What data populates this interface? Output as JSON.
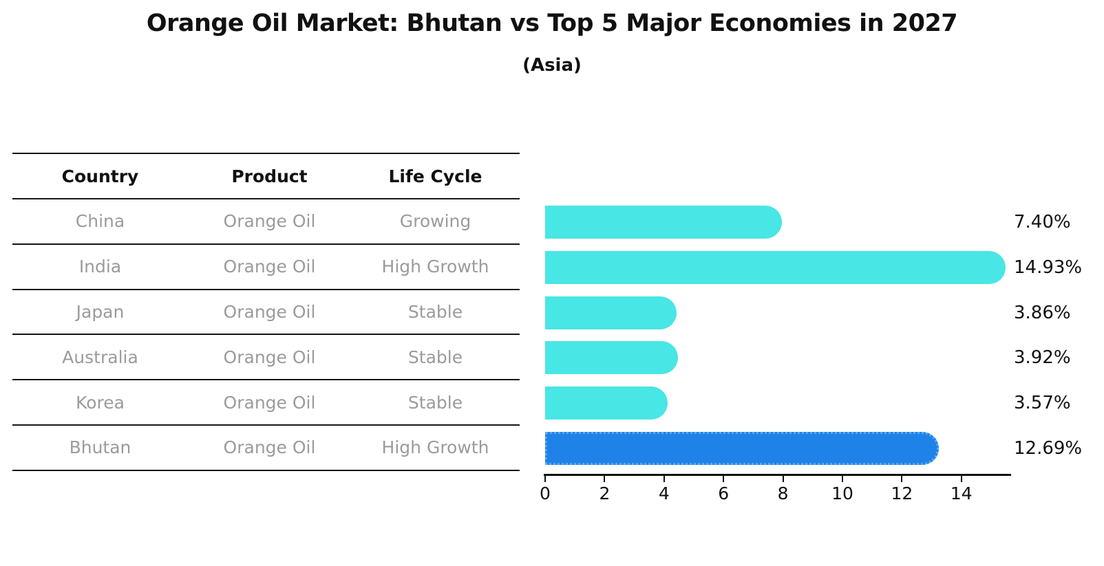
{
  "title": "Orange Oil Market: Bhutan vs Top 5 Major Economies in 2027",
  "subtitle": "(Asia)",
  "table": {
    "headers": [
      "Country",
      "Product",
      "Life Cycle"
    ],
    "rows": [
      {
        "country": "China",
        "product": "Orange Oil",
        "life_cycle": "Growing",
        "highlight": false
      },
      {
        "country": "India",
        "product": "Orange Oil",
        "life_cycle": "High Growth",
        "highlight": false
      },
      {
        "country": "Japan",
        "product": "Orange Oil",
        "life_cycle": "Stable",
        "highlight": false
      },
      {
        "country": "Australia",
        "product": "Orange Oil",
        "life_cycle": "Stable",
        "highlight": false
      },
      {
        "country": "Korea",
        "product": "Orange Oil",
        "life_cycle": "Stable",
        "highlight": false
      },
      {
        "country": "Bhutan",
        "product": "Orange Oil",
        "life_cycle": "High Growth",
        "highlight": true
      }
    ]
  },
  "chart_data": {
    "type": "bar",
    "orientation": "horizontal",
    "title": "Orange Oil Market: Bhutan vs Top 5 Major Economies in 2027",
    "subtitle": "(Asia)",
    "categories": [
      "China",
      "India",
      "Japan",
      "Australia",
      "Korea",
      "Bhutan"
    ],
    "values": [
      7.4,
      14.93,
      3.86,
      3.92,
      3.57,
      12.69
    ],
    "value_labels": [
      "7.40%",
      "14.93%",
      "3.86%",
      "3.92%",
      "3.57%",
      "12.69%"
    ],
    "highlight_category": "Bhutan",
    "x_ticks": [
      0,
      2,
      4,
      6,
      8,
      10,
      12,
      14
    ],
    "xlim": [
      0,
      15.65
    ],
    "grid": false,
    "legend": "none",
    "colors": {
      "bar_default": "#48e6e4",
      "bar_highlight": "#1e82e8",
      "highlight_border": "#5aa9f2",
      "highlight_text": "#1e7ad4",
      "row_text": "#9b9b9b",
      "axis": "#111111"
    }
  }
}
